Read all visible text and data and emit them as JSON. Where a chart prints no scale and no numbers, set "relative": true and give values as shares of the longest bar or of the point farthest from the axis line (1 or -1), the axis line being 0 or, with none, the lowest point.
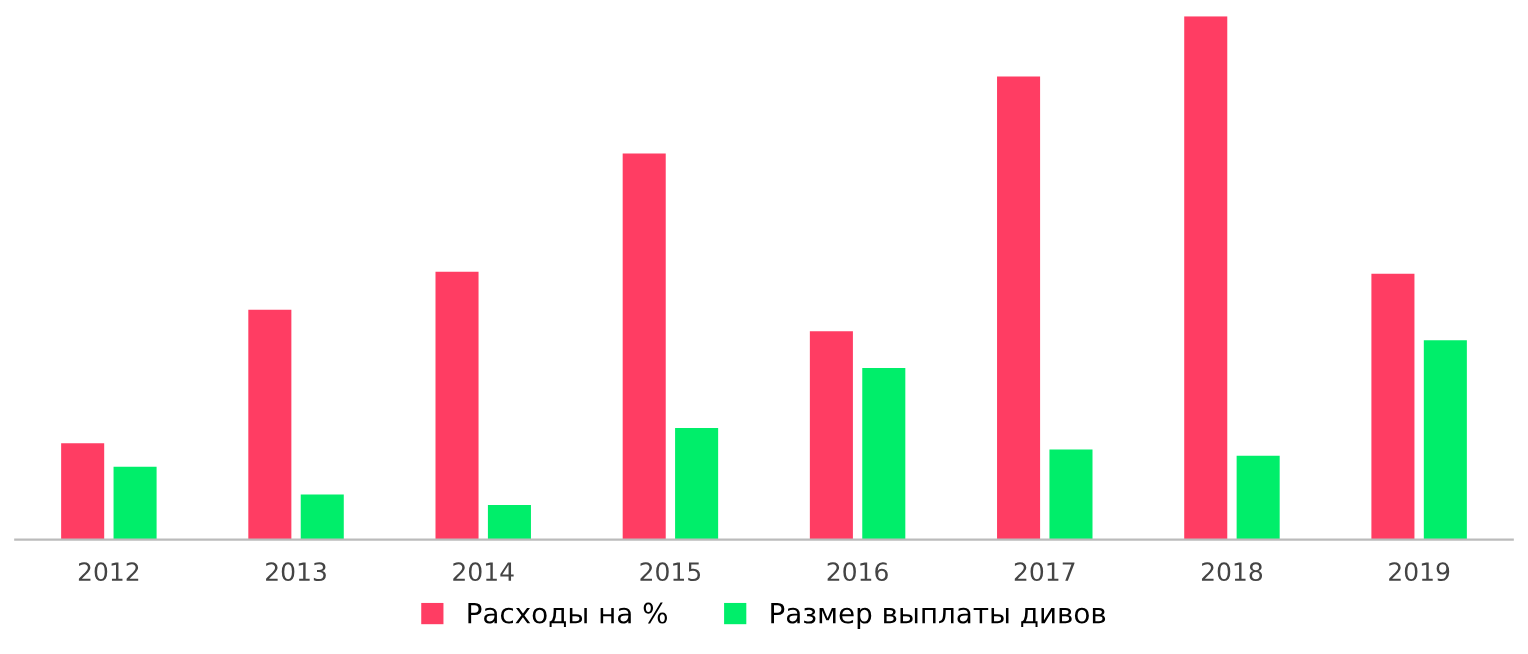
{
  "chart_data": {
    "type": "bar",
    "relative": true,
    "categories": [
      "2012",
      "2013",
      "2014",
      "2015",
      "2016",
      "2017",
      "2018",
      "2019"
    ],
    "series": [
      {
        "name": "Расходы на %",
        "color": "#ff3d63",
        "values": [
          0.184,
          0.439,
          0.512,
          0.738,
          0.398,
          0.885,
          1,
          0.508
        ]
      },
      {
        "name": "Размер выплаты дивов",
        "color": "#00ee6a",
        "values": [
          0.139,
          0.086,
          0.066,
          0.213,
          0.328,
          0.172,
          0.16,
          0.381
        ]
      }
    ],
    "legend": "bottom",
    "grid": false
  }
}
